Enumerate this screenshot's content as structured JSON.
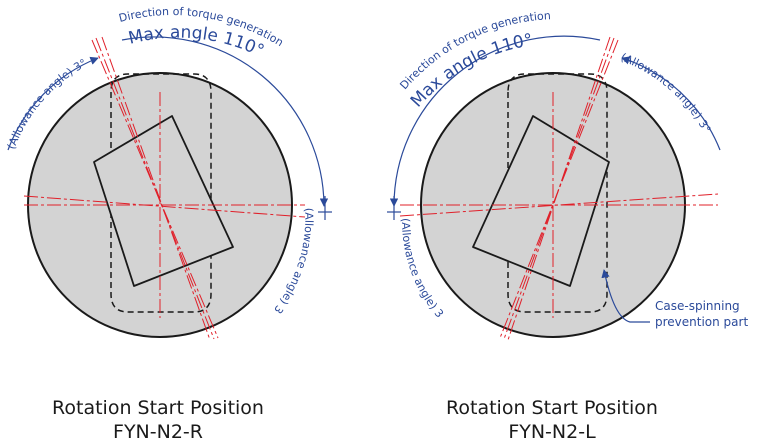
{
  "diagrams": [
    {
      "id": "right",
      "caption_line1": "Rotation Start Position",
      "caption_line2": "FYN-N2-R",
      "label_direction": "Direction of torque generation",
      "label_max_angle": "Max angle 110°",
      "label_allowance_top": "(Allowance angle) 3°",
      "label_allowance_side": "(Allowance angle) 3°"
    },
    {
      "id": "left",
      "caption_line1": "Rotation Start Position",
      "caption_line2": "FYN-N2-L",
      "label_direction": "Direction of torque generation",
      "label_max_angle": "Max angle 110°",
      "label_allowance_top": "(Allowance angle) 3°",
      "label_allowance_side": "(Allowance angle) 3°",
      "callout_line1": "Case-spinning",
      "callout_line2": "prevention part"
    }
  ],
  "colors": {
    "disk_fill": "#d3d3d3",
    "outline": "#1a1a1a",
    "centerline": "#e0202a",
    "annotation": "#2b4a9a"
  }
}
